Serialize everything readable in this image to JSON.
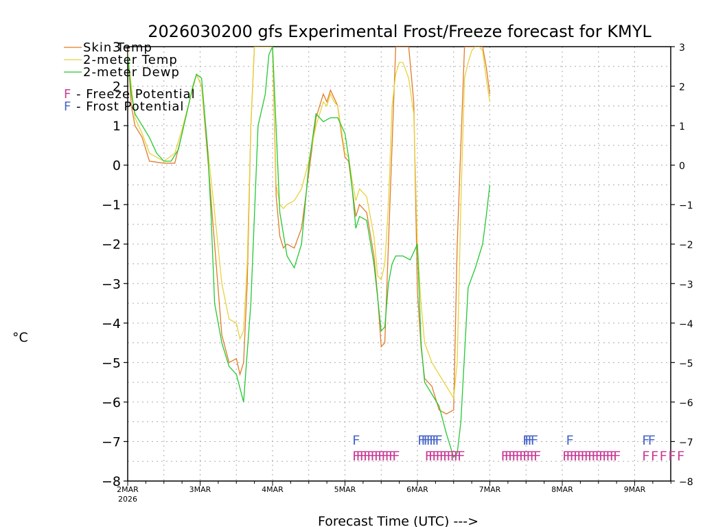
{
  "chart_data": {
    "type": "line",
    "title": "2026030200 gfs Experimental Frost/Freeze forecast for KMYL",
    "xlabel": "Forecast Time (UTC) --->",
    "ylabel": "°C",
    "ylim": [
      -8,
      3
    ],
    "xlim_days": [
      0,
      7.5
    ],
    "yticks": [
      -8,
      -7,
      -6,
      -5,
      -4,
      -3,
      -2,
      -1,
      0,
      1,
      2,
      3
    ],
    "xticks": [
      {
        "day": 0,
        "label": "2MAR",
        "sublabel": "2026"
      },
      {
        "day": 1,
        "label": "3MAR"
      },
      {
        "day": 2,
        "label": "4MAR"
      },
      {
        "day": 3,
        "label": "5MAR"
      },
      {
        "day": 4,
        "label": "6MAR"
      },
      {
        "day": 5,
        "label": "7MAR"
      },
      {
        "day": 6,
        "label": "8MAR"
      },
      {
        "day": 7,
        "label": "9MAR"
      }
    ],
    "grid": true,
    "legend": {
      "placement": "top-left",
      "series_entries": [
        "Skin Temp",
        "2-meter Temp",
        "2-meter Dewp"
      ],
      "freeze": {
        "letter": "F",
        "text": " - Freeze Potential",
        "color": "#c83c96"
      },
      "frost": {
        "letter": "F",
        "text": " - Frost Potential",
        "color": "#4664c8"
      }
    },
    "series": [
      {
        "name": "Skin Temp",
        "color": "#e07a28",
        "x": [
          0,
          0.05,
          0.1,
          0.2,
          0.3,
          0.5,
          0.65,
          0.75,
          0.85,
          0.95,
          1.02,
          1.1,
          1.2,
          1.3,
          1.4,
          1.5,
          1.55,
          1.6,
          1.65,
          1.7,
          1.75,
          1.8,
          1.88,
          1.95,
          2.0,
          2.05,
          2.1,
          2.15,
          2.2,
          2.3,
          2.4,
          2.5,
          2.6,
          2.7,
          2.75,
          2.8,
          2.85,
          2.9,
          2.95,
          3.0,
          3.05,
          3.1,
          3.15,
          3.2,
          3.3,
          3.4,
          3.45,
          3.5,
          3.55,
          3.6,
          3.65,
          3.7,
          3.75,
          3.8,
          3.88,
          3.95,
          4.0,
          4.05,
          4.1,
          4.2,
          4.3,
          4.4,
          4.5,
          4.55,
          4.6,
          4.65,
          4.7,
          4.75,
          4.8,
          4.85,
          4.9,
          4.95,
          5.0
        ],
        "y": [
          2.9,
          1.5,
          1.0,
          0.7,
          0.1,
          0.05,
          0.05,
          0.8,
          1.6,
          2.3,
          2.0,
          0.3,
          -2.0,
          -4.3,
          -5.0,
          -4.9,
          -5.3,
          -5.0,
          -3.0,
          1.0,
          3.0,
          3.0,
          3.0,
          3.0,
          3.0,
          -0.8,
          -1.8,
          -2.1,
          -2.0,
          -2.1,
          -1.6,
          -0.2,
          1.2,
          1.8,
          1.6,
          1.9,
          1.7,
          1.5,
          0.8,
          0.2,
          0.1,
          -0.6,
          -1.3,
          -1.0,
          -1.2,
          -2.3,
          -3.3,
          -4.6,
          -4.5,
          -2.0,
          0.5,
          3.0,
          3.0,
          3.0,
          3.0,
          1.6,
          -3.2,
          -4.6,
          -5.4,
          -5.6,
          -6.2,
          -6.3,
          -6.2,
          -2.0,
          0.5,
          3.0,
          3.0,
          3.0,
          3.0,
          3.0,
          3.0,
          2.5,
          1.8
        ]
      },
      {
        "name": "2-meter Temp",
        "color": "#e8d23c",
        "x": [
          0,
          0.05,
          0.1,
          0.2,
          0.3,
          0.5,
          0.65,
          0.75,
          0.85,
          0.95,
          1.02,
          1.1,
          1.2,
          1.3,
          1.4,
          1.5,
          1.55,
          1.6,
          1.65,
          1.7,
          1.75,
          1.8,
          1.88,
          1.95,
          2.0,
          2.05,
          2.1,
          2.15,
          2.2,
          2.3,
          2.4,
          2.5,
          2.6,
          2.7,
          2.75,
          2.8,
          2.85,
          2.9,
          2.95,
          3.0,
          3.05,
          3.1,
          3.15,
          3.2,
          3.3,
          3.4,
          3.45,
          3.5,
          3.55,
          3.6,
          3.65,
          3.7,
          3.75,
          3.8,
          3.88,
          3.95,
          4.0,
          4.05,
          4.1,
          4.2,
          4.3,
          4.4,
          4.5,
          4.55,
          4.6,
          4.65,
          4.7,
          4.75,
          4.8,
          4.85,
          4.9,
          4.95,
          5.0
        ],
        "y": [
          2.8,
          2.0,
          1.2,
          0.8,
          0.3,
          0.1,
          0.3,
          0.9,
          1.6,
          2.3,
          2.0,
          0.5,
          -1.2,
          -3.0,
          -3.9,
          -4.0,
          -4.4,
          -4.2,
          -2.5,
          1.0,
          3.0,
          3.0,
          3.0,
          3.0,
          3.0,
          -0.5,
          -1.0,
          -1.1,
          -1.0,
          -0.9,
          -0.6,
          0.1,
          1.0,
          1.6,
          1.5,
          1.8,
          1.6,
          1.5,
          0.9,
          0.3,
          0.2,
          -0.4,
          -0.9,
          -0.6,
          -0.8,
          -1.8,
          -2.8,
          -2.9,
          -2.5,
          -1.0,
          1.5,
          2.3,
          2.6,
          2.6,
          2.2,
          1.3,
          -2.0,
          -3.5,
          -4.5,
          -5.0,
          -5.3,
          -5.6,
          -5.9,
          -5.0,
          -1.0,
          2.2,
          2.6,
          2.9,
          3.0,
          3.0,
          2.9,
          2.2,
          1.6
        ]
      },
      {
        "name": "2-meter Dewp",
        "color": "#22c832",
        "x": [
          0,
          0.05,
          0.1,
          0.2,
          0.3,
          0.4,
          0.5,
          0.6,
          0.7,
          0.8,
          0.9,
          0.95,
          1.02,
          1.1,
          1.15,
          1.2,
          1.3,
          1.4,
          1.5,
          1.6,
          1.7,
          1.8,
          1.9,
          1.95,
          2.0,
          2.1,
          2.2,
          2.3,
          2.4,
          2.5,
          2.6,
          2.7,
          2.8,
          2.9,
          3.0,
          3.05,
          3.1,
          3.15,
          3.2,
          3.3,
          3.4,
          3.5,
          3.55,
          3.6,
          3.65,
          3.7,
          3.8,
          3.9,
          4.0,
          4.05,
          4.1,
          4.2,
          4.3,
          4.4,
          4.5,
          4.55,
          4.6,
          4.65,
          4.7,
          4.8,
          4.9,
          4.95,
          5.0
        ],
        "y": [
          2.8,
          1.8,
          1.3,
          1.0,
          0.7,
          0.3,
          0.1,
          0.1,
          0.4,
          1.2,
          2.0,
          2.3,
          2.2,
          0.5,
          -1.2,
          -3.5,
          -4.5,
          -5.1,
          -5.3,
          -6.0,
          -3.5,
          1.0,
          1.8,
          2.8,
          3.0,
          -1.2,
          -2.3,
          -2.6,
          -2.0,
          0.0,
          1.3,
          1.1,
          1.2,
          1.2,
          0.8,
          0.2,
          -0.6,
          -1.6,
          -1.3,
          -1.4,
          -2.5,
          -4.2,
          -4.1,
          -3.0,
          -2.5,
          -2.3,
          -2.3,
          -2.4,
          -2.0,
          -4.5,
          -5.5,
          -5.8,
          -6.1,
          -6.8,
          -7.4,
          -7.3,
          -6.5,
          -4.8,
          -3.1,
          -2.6,
          -2.0,
          -1.3,
          -0.5
        ]
      }
    ],
    "frost_marks": [
      3.1,
      4.0,
      4.05,
      4.08,
      4.12,
      4.16,
      4.2,
      4.24,
      5.45,
      5.48,
      5.52,
      5.56,
      6.05,
      7.1,
      7.18
    ],
    "freeze_marks": [
      3.1,
      3.15,
      3.2,
      3.25,
      3.3,
      3.35,
      3.4,
      3.45,
      3.5,
      3.55,
      3.6,
      3.65,
      4.1,
      4.15,
      4.2,
      4.25,
      4.3,
      4.35,
      4.4,
      4.45,
      4.5,
      4.55,
      5.15,
      5.2,
      5.25,
      5.3,
      5.35,
      5.4,
      5.45,
      5.5,
      5.55,
      5.6,
      6.0,
      6.05,
      6.1,
      6.15,
      6.2,
      6.25,
      6.3,
      6.35,
      6.4,
      6.45,
      6.5,
      6.55,
      6.6,
      6.65,
      6.7,
      7.1,
      7.22,
      7.34,
      7.46,
      7.58
    ]
  }
}
